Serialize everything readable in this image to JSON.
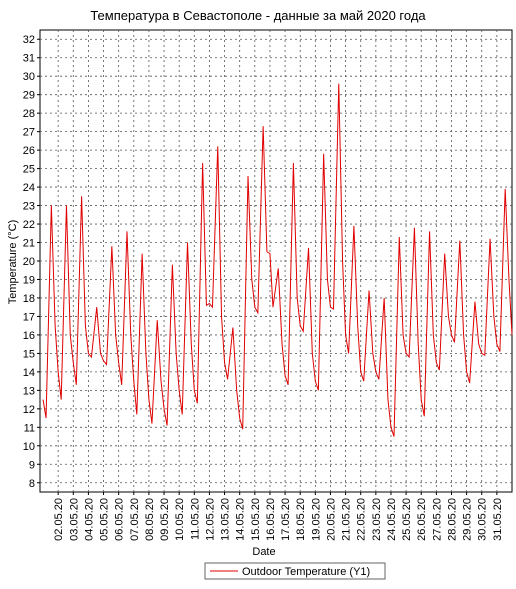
{
  "chart_data": {
    "type": "line",
    "title": "Температура в Севастополе - данные за май 2020 года",
    "x_label": "Date",
    "y_label": "Temperature (°C)",
    "x": [
      0,
      0.2,
      0.55,
      0.8,
      1,
      1.2,
      1.55,
      1.8,
      2,
      2.2,
      2.55,
      2.8,
      3,
      3.2,
      3.55,
      3.8,
      4,
      4.2,
      4.55,
      4.8,
      5,
      5.2,
      5.55,
      5.8,
      6,
      6.2,
      6.55,
      6.8,
      7,
      7.2,
      7.55,
      7.8,
      8,
      8.2,
      8.55,
      8.8,
      9,
      9.2,
      9.55,
      9.8,
      10,
      10.2,
      10.55,
      10.8,
      11,
      11.2,
      11.55,
      11.8,
      12,
      12.2,
      12.55,
      12.8,
      13,
      13.2,
      13.55,
      13.8,
      14,
      14.2,
      14.55,
      14.8,
      15,
      15.2,
      15.55,
      15.8,
      16,
      16.2,
      16.55,
      16.8,
      17,
      17.2,
      17.55,
      17.8,
      18,
      18.2,
      18.55,
      18.8,
      19,
      19.2,
      19.55,
      19.8,
      20,
      20.2,
      20.55,
      20.8,
      21,
      21.2,
      21.55,
      21.8,
      22,
      22.2,
      22.55,
      22.8,
      23,
      23.2,
      23.55,
      23.8,
      24,
      24.2,
      24.55,
      24.8,
      25,
      25.2,
      25.55,
      25.8,
      26,
      26.2,
      26.55,
      26.8,
      27,
      27.2,
      27.55,
      27.8,
      28,
      28.2,
      28.55,
      28.8,
      29,
      29.2,
      29.55,
      29.8,
      30,
      30.2,
      30.55,
      30.8,
      31
    ],
    "series": [
      {
        "name": "Outdoor Temperature (Y1)",
        "color": "#e00000",
        "values": [
          12.5,
          11.5,
          23.0,
          16.5,
          14.0,
          12.5,
          23.0,
          16.0,
          14.5,
          13.3,
          23.5,
          16.5,
          15.0,
          14.8,
          17.5,
          15.0,
          14.6,
          14.4,
          20.8,
          16.0,
          14.5,
          13.3,
          21.6,
          16.0,
          13.5,
          11.7,
          20.4,
          15.0,
          12.5,
          11.2,
          16.8,
          13.5,
          12.0,
          11.1,
          19.8,
          15.0,
          13.0,
          11.7,
          21.0,
          15.5,
          13.0,
          12.3,
          25.3,
          17.6,
          17.7,
          17.5,
          26.2,
          17.0,
          14.5,
          13.6,
          16.4,
          13.0,
          11.5,
          10.9,
          24.6,
          19.0,
          17.5,
          17.2,
          27.3,
          20.5,
          20.4,
          17.5,
          19.6,
          15.5,
          13.8,
          13.3,
          25.3,
          18.0,
          16.5,
          16.2,
          20.7,
          15.0,
          13.5,
          13.0,
          25.8,
          19.0,
          17.5,
          17.4,
          29.6,
          20.0,
          16.0,
          15.0,
          21.9,
          16.5,
          14.0,
          13.5,
          18.4,
          15.0,
          14.0,
          13.6,
          18.0,
          12.5,
          11.0,
          10.5,
          21.3,
          16.0,
          15.0,
          14.8,
          21.8,
          15.5,
          12.5,
          11.6,
          21.6,
          16.0,
          14.5,
          14.1,
          20.4,
          17.0,
          16.0,
          15.6,
          21.1,
          16.0,
          14.0,
          13.4,
          17.8,
          15.5,
          15.0,
          14.9,
          21.2,
          17.0,
          15.5,
          15.1,
          23.9,
          19.0,
          16.0
        ]
      }
    ],
    "xlim": [
      -0.2,
      31
    ],
    "xticks": [
      {
        "value": 1,
        "label": "02.05.20"
      },
      {
        "value": 2,
        "label": "03.05.20"
      },
      {
        "value": 3,
        "label": "04.05.20"
      },
      {
        "value": 4,
        "label": "05.05.20"
      },
      {
        "value": 5,
        "label": "06.05.20"
      },
      {
        "value": 6,
        "label": "07.05.20"
      },
      {
        "value": 7,
        "label": "08.05.20"
      },
      {
        "value": 8,
        "label": "09.05.20"
      },
      {
        "value": 9,
        "label": "10.05.20"
      },
      {
        "value": 10,
        "label": "11.05.20"
      },
      {
        "value": 11,
        "label": "12.05.20"
      },
      {
        "value": 12,
        "label": "13.05.20"
      },
      {
        "value": 13,
        "label": "14.05.20"
      },
      {
        "value": 14,
        "label": "15.05.20"
      },
      {
        "value": 15,
        "label": "16.05.20"
      },
      {
        "value": 16,
        "label": "17.05.20"
      },
      {
        "value": 17,
        "label": "18.05.20"
      },
      {
        "value": 18,
        "label": "19.05.20"
      },
      {
        "value": 19,
        "label": "20.05.20"
      },
      {
        "value": 20,
        "label": "21.05.20"
      },
      {
        "value": 21,
        "label": "22.05.20"
      },
      {
        "value": 22,
        "label": "23.05.20"
      },
      {
        "value": 23,
        "label": "24.05.20"
      },
      {
        "value": 24,
        "label": "25.05.20"
      },
      {
        "value": 25,
        "label": "26.05.20"
      },
      {
        "value": 26,
        "label": "27.05.20"
      },
      {
        "value": 27,
        "label": "28.05.20"
      },
      {
        "value": 28,
        "label": "29.05.20"
      },
      {
        "value": 29,
        "label": "30.05.20"
      },
      {
        "value": 30,
        "label": "31.05.20"
      }
    ],
    "ylim": [
      7.5,
      32.5
    ],
    "yticks": [
      8,
      9,
      10,
      11,
      12,
      13,
      14,
      15,
      16,
      17,
      18,
      19,
      20,
      21,
      22,
      23,
      24,
      25,
      26,
      27,
      28,
      29,
      30,
      31,
      32
    ],
    "grid": true
  }
}
